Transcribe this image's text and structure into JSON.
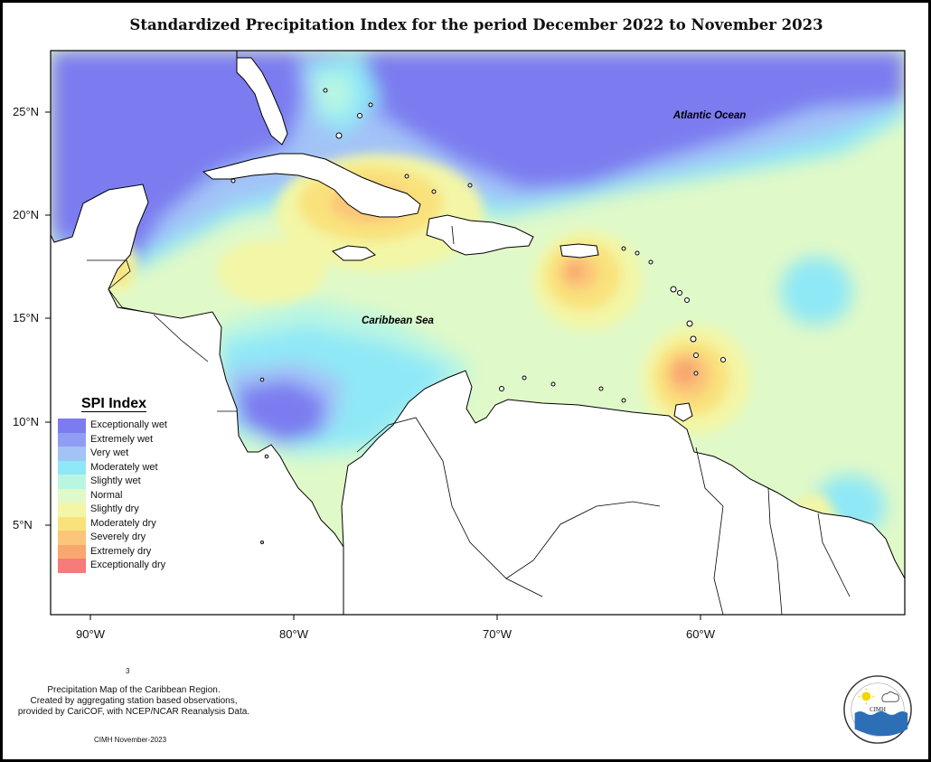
{
  "map": {
    "title": "Standardized Precipitation Index for the period December 2022 to November 2023",
    "region_labels": {
      "atlantic": "Atlantic Ocean",
      "caribbean": "Caribbean Sea"
    },
    "y_ticks": [
      "25°N",
      "20°N",
      "15°N",
      "10°N",
      "5°N"
    ],
    "x_ticks": [
      "90°W",
      "80°W",
      "70°W",
      "60°W"
    ],
    "lat_range": [
      1.3,
      28.7
    ],
    "lon_range": [
      -92,
      -50
    ],
    "colors": {
      "ocean_background": "#e0f9c8",
      "land": "#ffffff",
      "coastline": "#000000"
    }
  },
  "legend": {
    "title": "SPI Index",
    "items": [
      {
        "label": "Exceptionally wet",
        "color": "#7c7cf0"
      },
      {
        "label": "Extremely wet",
        "color": "#8f9ef4"
      },
      {
        "label": "Very wet",
        "color": "#a3c3f7"
      },
      {
        "label": "Moderately wet",
        "color": "#8fe8f6"
      },
      {
        "label": "Slightly wet",
        "color": "#b9f6e2"
      },
      {
        "label": "Normal",
        "color": "#e0f9c8"
      },
      {
        "label": "Slightly dry",
        "color": "#f3f6a6"
      },
      {
        "label": "Moderately dry",
        "color": "#f9e27c"
      },
      {
        "label": "Severely dry",
        "color": "#fbc67a"
      },
      {
        "label": "Extremely dry",
        "color": "#f8a76e"
      },
      {
        "label": "Exceptionally dry",
        "color": "#f67b7b"
      }
    ]
  },
  "footer": {
    "small_mark": "3",
    "note_lines": [
      "Precipitation Map of the Caribbean Region.",
      "Created by aggregating station based observations,",
      "provided by CariCOF, with NCEP/NCAR Reanalysis Data."
    ],
    "credit": "CIMH November-2023",
    "logo_text": "CIMH"
  }
}
